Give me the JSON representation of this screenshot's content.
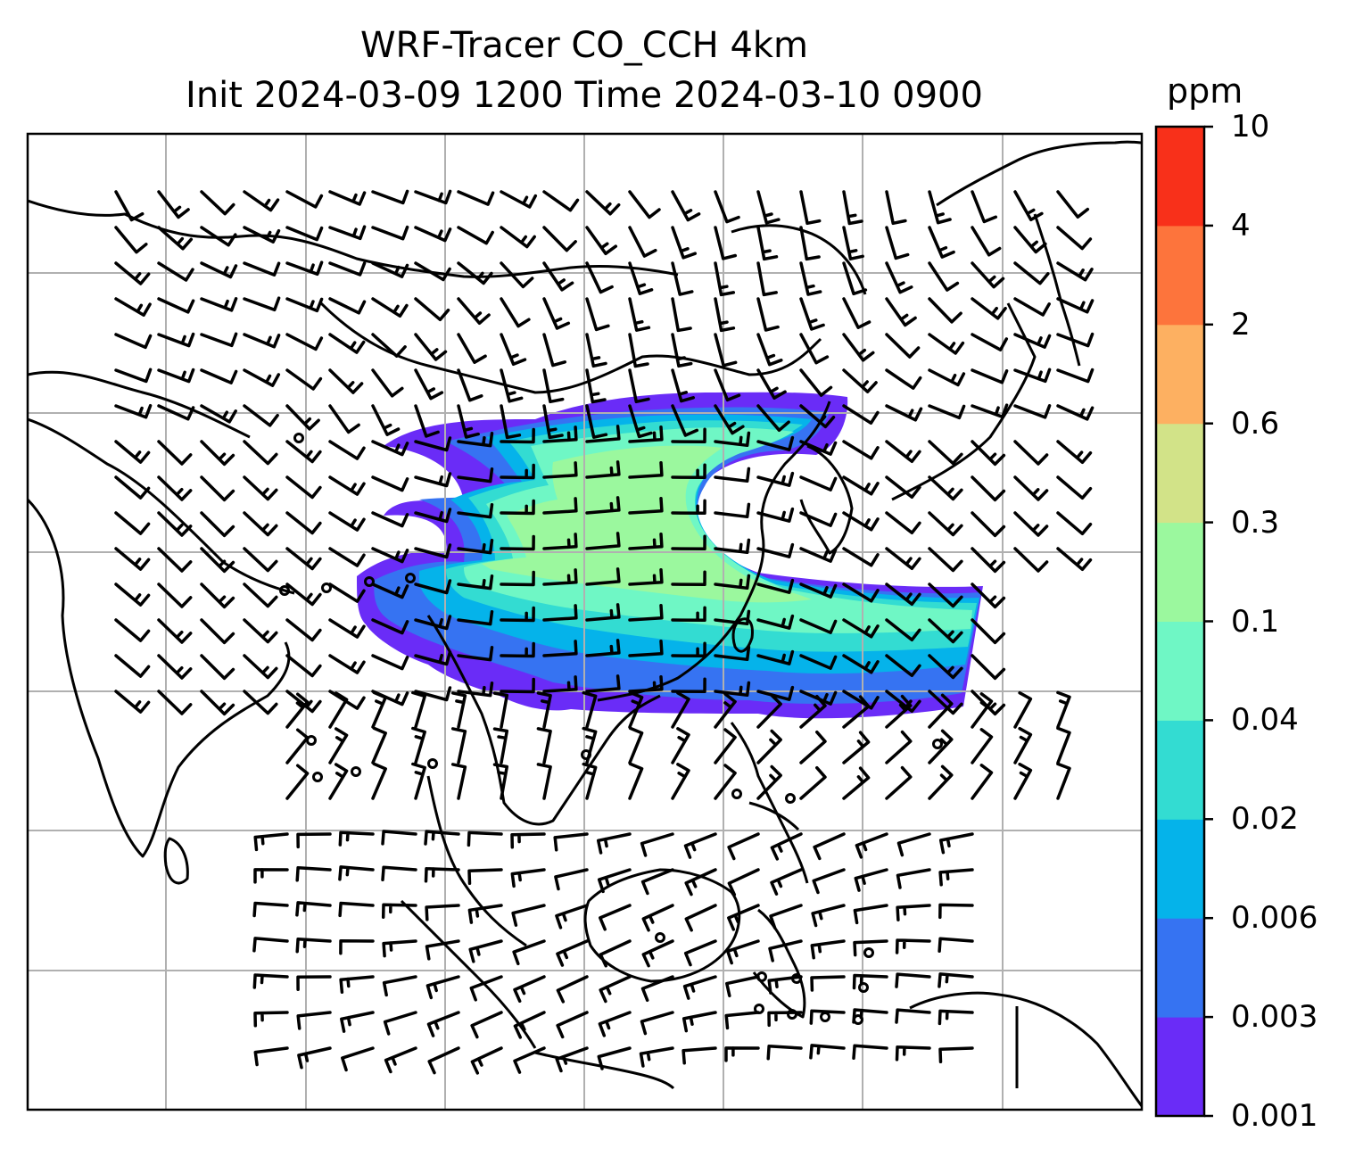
{
  "title": {
    "line1": "WRF-Tracer CO_CCH 4km",
    "line2": "Init 2024-03-09 1200 Time 2024-03-10 0900"
  },
  "colorbar": {
    "unit": "ppm",
    "levels": [
      "0.001",
      "0.003",
      "0.006",
      "0.02",
      "0.04",
      "0.1",
      "0.3",
      "0.6",
      "2",
      "4",
      "10"
    ],
    "colors": [
      "#6a2cf7",
      "#3673f2",
      "#05b3ea",
      "#33dcd2",
      "#6ff7c5",
      "#9bf89e",
      "#d2e388",
      "#fdb061",
      "#fd743c",
      "#f8301a"
    ]
  },
  "map": {
    "plume_colors": {
      "outer": "#6a2cf7",
      "mid": "#3673f2",
      "inner": "#05b3ea",
      "teal": "#33dcd2",
      "aqua": "#6ff7c5",
      "core": "#9bf89e"
    },
    "gridline_color": "#b0b0b0",
    "coastline_color": "#000000",
    "calm_markers": [
      [
        335,
        491
      ],
      [
        349,
        830
      ],
      [
        356,
        871
      ],
      [
        399,
        865
      ],
      [
        485,
        856
      ],
      [
        657,
        846
      ],
      [
        826,
        890
      ],
      [
        886,
        895
      ],
      [
        740,
        1051
      ],
      [
        854,
        1095
      ],
      [
        893,
        1097
      ],
      [
        851,
        1131
      ],
      [
        888,
        1137
      ],
      [
        925,
        1140
      ],
      [
        962,
        1143
      ],
      [
        968,
        1107
      ],
      [
        974,
        1068
      ],
      [
        1051,
        834
      ],
      [
        319,
        662
      ],
      [
        366,
        659
      ],
      [
        414,
        652
      ],
      [
        460,
        648
      ]
    ]
  }
}
